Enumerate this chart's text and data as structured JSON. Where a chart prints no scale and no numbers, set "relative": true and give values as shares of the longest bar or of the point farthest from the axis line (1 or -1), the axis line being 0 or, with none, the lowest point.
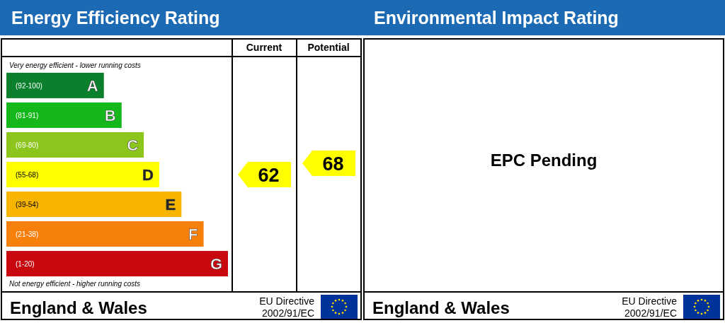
{
  "chart_data": [
    {
      "type": "bar",
      "orientation": "horizontal",
      "relative": true,
      "title": "Energy Efficiency Rating",
      "categories": [
        "A",
        "B",
        "C",
        "D",
        "E",
        "F",
        "G"
      ],
      "values": [
        0.44,
        0.52,
        0.62,
        0.69,
        0.79,
        0.89,
        1
      ],
      "colors": [
        "#0a7f2c",
        "#14b81a",
        "#8cc51c",
        "#ffff00",
        "#f7b500",
        "#f77f0b",
        "#c8070f"
      ],
      "annotations": [
        "Very energy efficient - lower running costs",
        "Not energy efficient - higher running costs",
        "Current",
        "Potential",
        "England & Wales",
        "EU Directive",
        "2002/91/EC",
        "(92-100)",
        "(81-91)",
        "(69-80)",
        "(55-68)",
        "(39-54)",
        "(21-38)",
        "(1-20)",
        "62",
        "68"
      ]
    },
    {
      "type": "other",
      "title": "Environmental Impact Rating",
      "annotations": [
        "EPC Pending",
        "England & Wales",
        "EU Directive",
        "2002/91/EC"
      ]
    }
  ]
}
